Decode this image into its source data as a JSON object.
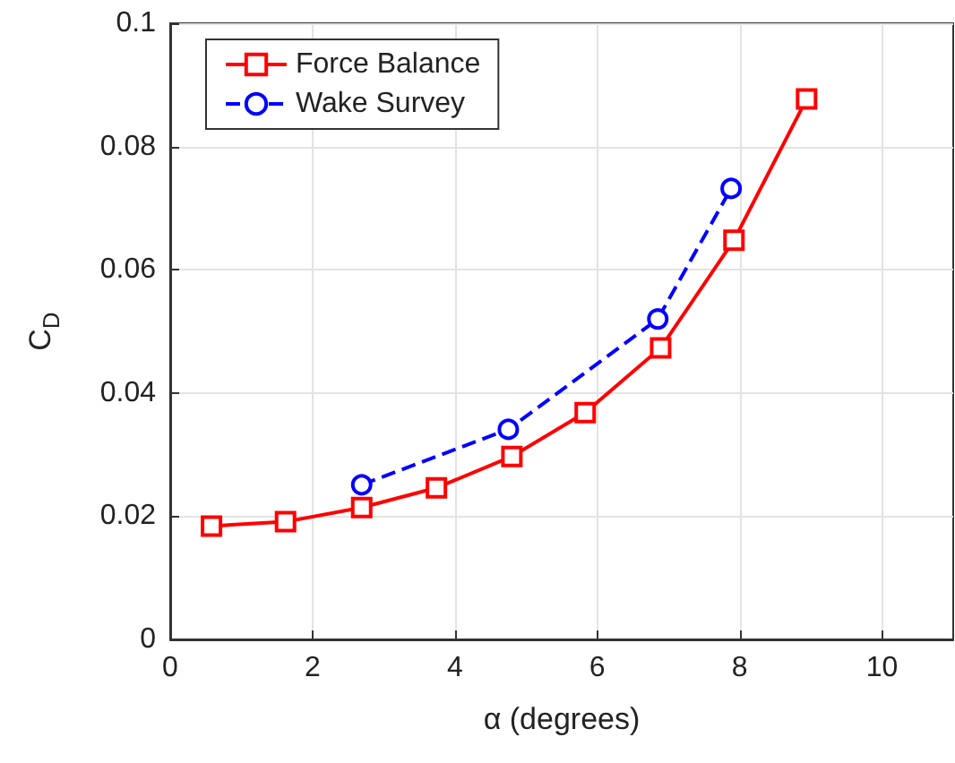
{
  "chart_data": {
    "type": "line",
    "xlabel": "α (degrees)",
    "ylabel": "C$_{D}$",
    "xlim": [
      0,
      11
    ],
    "xticks": [
      0,
      2,
      4,
      6,
      8,
      10
    ],
    "ylim": [
      0,
      0.1
    ],
    "yticks": [
      0,
      0.02,
      0.04,
      0.06,
      0.08,
      0.1
    ],
    "grid": true,
    "legend": "top left",
    "series": [
      {
        "name": "Force Balance",
        "color": "#ff0000",
        "marker": "square",
        "line_style": "solid",
        "x": [
          0.58,
          1.62,
          2.69,
          3.74,
          4.8,
          5.83,
          6.89,
          7.92,
          8.94
        ],
        "values": [
          0.0184,
          0.0191,
          0.0214,
          0.0246,
          0.0297,
          0.0368,
          0.0473,
          0.0648,
          0.0877
        ]
      },
      {
        "name": "Wake Survey",
        "color": "#0000ff",
        "marker": "circle",
        "line_style": "dashed",
        "x": [
          2.69,
          4.75,
          6.85,
          7.88
        ],
        "values": [
          0.0251,
          0.0341,
          0.052,
          0.0732
        ]
      }
    ]
  }
}
